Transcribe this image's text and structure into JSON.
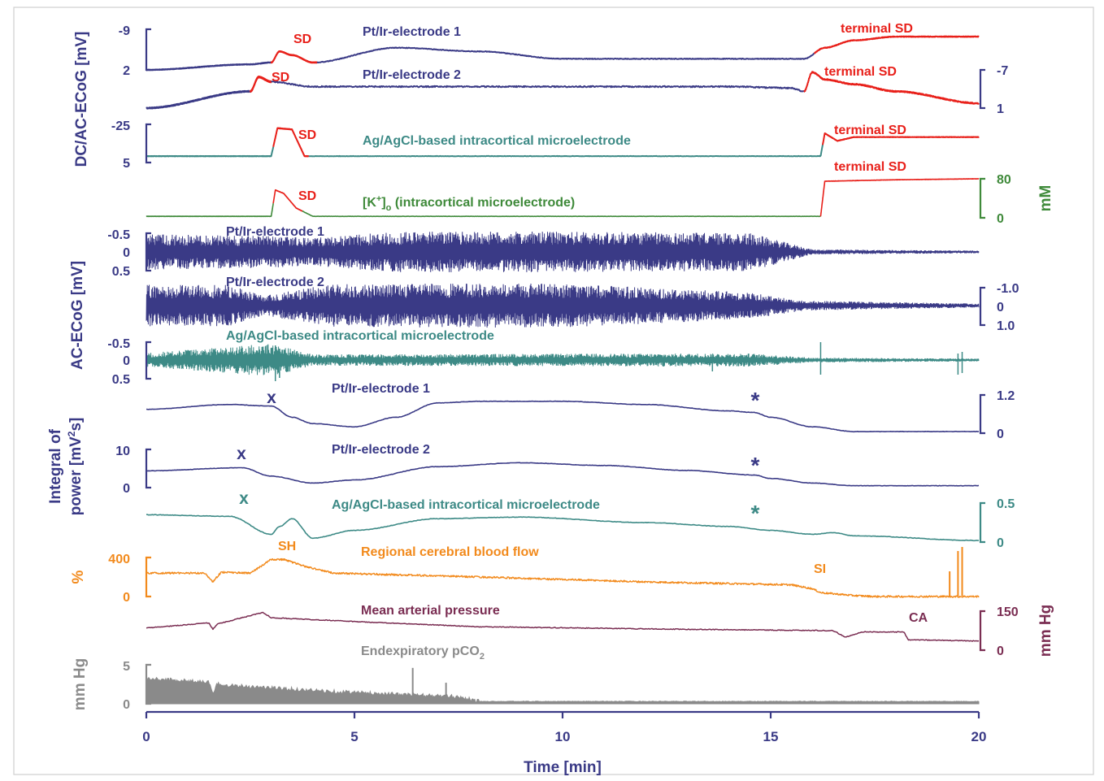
{
  "chart_data": {
    "type": "line",
    "xlabel": "Time [min]",
    "xlim": [
      0,
      20
    ],
    "xticks": [
      0,
      5,
      10,
      15,
      20
    ],
    "colors": {
      "navy": "#3a3a86",
      "teal": "#3d8a86",
      "green": "#3f8a3a",
      "red": "#e8201a",
      "orange": "#f28a1c",
      "maroon": "#7a2d52",
      "gray": "#8a8a8a"
    },
    "group_labels": {
      "dc_ac_ecog": "DC/AC-ECoG [mV]",
      "ac_ecog": "AC-ECoG [mV]",
      "integral_power_line1": "Integral of",
      "integral_power_line2_pre": "power [mV",
      "integral_power_line2_sup": "2",
      "integral_power_line2_post": "s]"
    },
    "panels": {
      "dc1": {
        "label": "Pt/Ir-electrode 1",
        "ticks": [
          "-9",
          "2"
        ],
        "events": [
          "SD",
          "terminal SD"
        ],
        "x": [
          0,
          2.5,
          3.0,
          3.2,
          3.5,
          4.0,
          6.0,
          8.0,
          10.0,
          12.0,
          15.0,
          15.8,
          16.3,
          17.0,
          18.0,
          20.0
        ],
        "y": [
          2,
          0.5,
          0,
          -3,
          -2,
          0,
          -4,
          -3,
          -1,
          -1,
          -1,
          -1,
          -4,
          -6,
          -7,
          -7
        ]
      },
      "dc2": {
        "label": "Pt/Ir-electrode 2",
        "ticks": [
          "-7",
          "1"
        ],
        "events": [
          "SD",
          "terminal SD"
        ],
        "x": [
          0,
          2.5,
          2.7,
          3.0,
          4.0,
          6.0,
          10.0,
          14.0,
          15.5,
          15.8,
          16.0,
          16.3,
          17.0,
          18.0,
          20.0
        ],
        "y": [
          1,
          -2.5,
          -5.5,
          -4.5,
          -3.5,
          -3.5,
          -3.5,
          -3.5,
          -3.2,
          -2.5,
          -6.5,
          -5.0,
          -4.0,
          -2.5,
          0
        ]
      },
      "dc3": {
        "label": "Ag/AgCl-based intracortical microelectrode",
        "ticks": [
          "-25",
          "5"
        ],
        "events": [
          "SD",
          "terminal SD"
        ],
        "x": [
          0,
          3.0,
          3.15,
          3.5,
          3.8,
          16.2,
          16.3,
          16.6,
          17.0,
          20.0
        ],
        "y": [
          0,
          0,
          -22,
          -21,
          0,
          0,
          -18,
          -12,
          -15,
          -15
        ]
      },
      "potassium": {
        "label_pre": "[K",
        "label_sup": "+",
        "label_mid": "]",
        "label_sub": "o",
        "label_post": " (intracortical microelectrode)",
        "unit": "mM",
        "ticks": [
          "80",
          "0"
        ],
        "events": [
          "SD",
          "terminal SD"
        ],
        "x": [
          0,
          3.0,
          3.1,
          3.3,
          3.6,
          4.0,
          16.2,
          16.3,
          18.0,
          20.0
        ],
        "y": [
          3,
          3,
          57,
          50,
          20,
          3,
          3,
          75,
          78,
          80
        ]
      },
      "ac1": {
        "label": "Pt/Ir-electrode 1",
        "ticks": [
          "-0.5",
          "0",
          "0.5"
        ],
        "envelope_x": [
          0,
          3,
          4,
          6,
          10,
          14.5,
          16,
          20
        ],
        "envelope_amp": [
          0.28,
          0.25,
          0.22,
          0.32,
          0.32,
          0.3,
          0.04,
          0.02
        ]
      },
      "ac2": {
        "label": "Pt/Ir-electrode 2",
        "ticks": [
          "-1.0",
          "0",
          "1.0"
        ],
        "envelope_x": [
          0,
          2,
          2.8,
          4.5,
          10,
          14.5,
          15.8,
          20
        ],
        "envelope_amp": [
          0.85,
          0.85,
          0.4,
          0.9,
          0.9,
          0.55,
          0.2,
          0.08
        ]
      },
      "ac3": {
        "label": "Ag/AgCl-based intracortical microelectrode",
        "ticks": [
          "-0.5",
          "0",
          "0.5"
        ],
        "envelope_x": [
          0,
          3,
          4,
          14.5,
          16,
          20
        ],
        "envelope_amp": [
          0.15,
          0.35,
          0.12,
          0.14,
          0.05,
          0.03
        ]
      },
      "ip1": {
        "label": "Pt/Ir-electrode 1",
        "ticks": [
          "1.2",
          "0"
        ],
        "markers": [
          "x",
          "*"
        ],
        "x": [
          0,
          2,
          3,
          3.5,
          4,
          5,
          6,
          7,
          8,
          10,
          12,
          14,
          14.6,
          15,
          16,
          17,
          20
        ],
        "y": [
          0.75,
          0.9,
          0.85,
          0.5,
          0.3,
          0.2,
          0.5,
          0.95,
          1.0,
          1.0,
          0.9,
          0.7,
          0.65,
          0.5,
          0.2,
          0.05,
          0.05
        ]
      },
      "ip2": {
        "label": "Pt/Ir-electrode 2",
        "ticks": [
          "10",
          "0"
        ],
        "markers": [
          "x",
          "*"
        ],
        "x": [
          0,
          2.3,
          3,
          4,
          5,
          7,
          9,
          11,
          13,
          14.6,
          15,
          16,
          17,
          20
        ],
        "y": [
          4.4,
          5.2,
          3,
          1.2,
          2,
          5.5,
          6.5,
          5.8,
          4.5,
          3.3,
          2.4,
          1.2,
          0.5,
          0.5
        ]
      },
      "ip3": {
        "label": "Ag/AgCl-based intracortical microelectrode",
        "ticks": [
          "0.5",
          "0"
        ],
        "markers": [
          "x",
          "*"
        ],
        "x": [
          0,
          2,
          3,
          3.2,
          3.5,
          4,
          5,
          7,
          9,
          12,
          14,
          15,
          16,
          16.5,
          17,
          20
        ],
        "y": [
          0.35,
          0.33,
          0.1,
          0.2,
          0.3,
          0.05,
          0.15,
          0.3,
          0.32,
          0.25,
          0.2,
          0.15,
          0.1,
          0.12,
          0.08,
          0.02
        ]
      },
      "cbf": {
        "label": "Regional cerebral blood flow",
        "unit": "%",
        "ticks": [
          "400",
          "0"
        ],
        "events": [
          "SH",
          "SI"
        ],
        "x": [
          0,
          1.4,
          1.6,
          1.8,
          2.5,
          3.0,
          3.3,
          3.8,
          4.5,
          8,
          12,
          15.5,
          16,
          16.2,
          17,
          17.5,
          20
        ],
        "y": [
          240,
          240,
          150,
          250,
          240,
          380,
          380,
          310,
          240,
          200,
          150,
          120,
          80,
          40,
          10,
          0,
          0
        ]
      },
      "map": {
        "label": "Mean arterial pressure",
        "unit": "mm Hg",
        "ticks": [
          "150",
          "0"
        ],
        "events": [
          "CA"
        ],
        "x": [
          0,
          1.5,
          1.6,
          1.7,
          2.8,
          3.0,
          5,
          8,
          13,
          16.5,
          16.8,
          17.2,
          18.2,
          18.3,
          20
        ],
        "y": [
          85,
          105,
          80,
          100,
          145,
          125,
          110,
          90,
          80,
          75,
          50,
          70,
          70,
          40,
          35
        ]
      },
      "pco2": {
        "label_pre": "Endexpiratory pCO",
        "label_sub": "2",
        "unit": "mm Hg",
        "ticks": [
          "5",
          "0"
        ],
        "x": [
          0,
          1.5,
          1.6,
          1.7,
          2.5,
          4,
          6,
          7.5,
          8,
          20
        ],
        "y": [
          3.2,
          2.8,
          1.2,
          2.5,
          2.2,
          1.7,
          1.2,
          0.9,
          0.3,
          0.3
        ]
      }
    }
  }
}
